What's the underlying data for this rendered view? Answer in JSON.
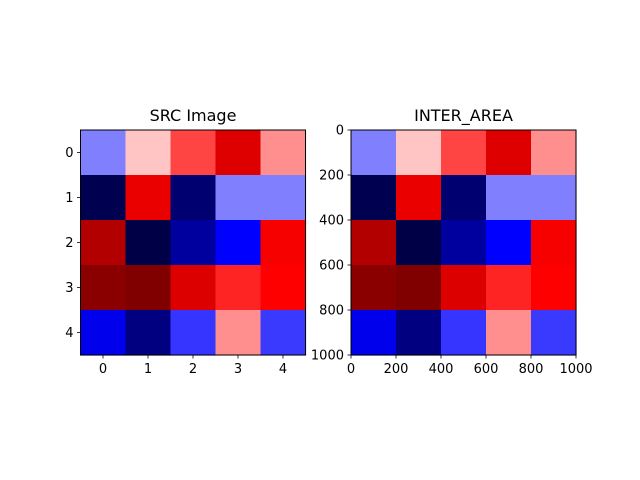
{
  "chart_data": [
    {
      "type": "heatmap",
      "title": "SRC Image",
      "xlabel": "",
      "ylabel": "",
      "x_ticks": [
        0,
        1,
        2,
        3,
        4
      ],
      "y_ticks": [
        0,
        1,
        2,
        3,
        4
      ],
      "xlim": [
        -0.5,
        4.5
      ],
      "ylim": [
        4.5,
        -0.5
      ],
      "grid": false,
      "colormap": "seismic",
      "cell_colors": [
        [
          "#8080ff",
          "#ffc4c4",
          "#ff4444",
          "#de0000",
          "#ff8e8e"
        ],
        [
          "#000050",
          "#eb0000",
          "#000070",
          "#8080ff",
          "#8080ff"
        ],
        [
          "#b20000",
          "#000046",
          "#00009e",
          "#0000ff",
          "#f60000"
        ],
        [
          "#8a0000",
          "#800000",
          "#dd0000",
          "#ff2424",
          "#ff0000"
        ],
        [
          "#0000ec",
          "#000080",
          "#3535ff",
          "#ff8e8e",
          "#3a3aff"
        ]
      ]
    },
    {
      "type": "heatmap",
      "title": "INTER_AREA",
      "xlabel": "",
      "ylabel": "",
      "x_ticks": [
        0,
        200,
        400,
        600,
        800,
        1000
      ],
      "y_ticks": [
        0,
        200,
        400,
        600,
        800,
        1000
      ],
      "xlim": [
        0,
        1000
      ],
      "ylim": [
        1000,
        0
      ],
      "grid": false,
      "colormap": "seismic",
      "cell_colors": [
        [
          "#8080ff",
          "#ffc4c4",
          "#ff4444",
          "#de0000",
          "#ff8e8e"
        ],
        [
          "#000050",
          "#eb0000",
          "#000070",
          "#8080ff",
          "#8080ff"
        ],
        [
          "#b20000",
          "#000046",
          "#00009e",
          "#0000ff",
          "#f60000"
        ],
        [
          "#8a0000",
          "#800000",
          "#dd0000",
          "#ff2424",
          "#ff0000"
        ],
        [
          "#0000ec",
          "#000080",
          "#3535ff",
          "#ff8e8e",
          "#3a3aff"
        ]
      ]
    }
  ]
}
